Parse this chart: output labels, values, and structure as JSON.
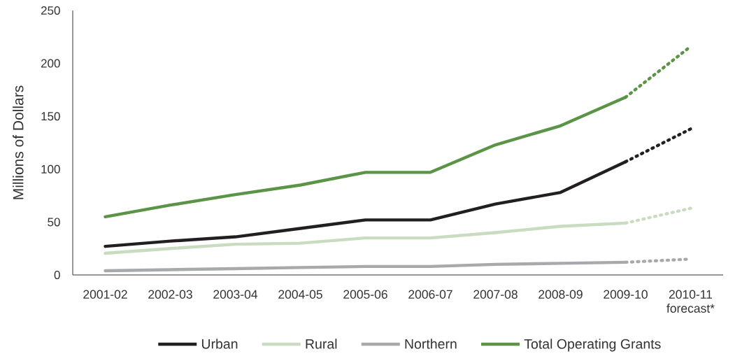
{
  "chart_data": {
    "type": "line",
    "ylabel": "Millions of Dollars",
    "categories": [
      "2001-02",
      "2002-03",
      "2003-04",
      "2004-05",
      "2005-06",
      "2006-07",
      "2007-08",
      "2008-09",
      "2009-10",
      "2010-11 forecast*"
    ],
    "ylim": [
      0,
      250
    ],
    "yticks": [
      0,
      50,
      100,
      150,
      200,
      250
    ],
    "legend": "bottom",
    "series": [
      {
        "name": "Urban",
        "color": "#231f20",
        "line_style": "solid",
        "values": [
          27,
          32,
          36,
          44,
          52,
          52,
          67,
          78,
          107,
          null
        ]
      },
      {
        "name": "Rural",
        "color": "#c9dcc0",
        "line_style": "solid",
        "values": [
          20.5,
          25,
          29,
          30,
          35,
          35,
          40,
          46,
          49,
          null
        ]
      },
      {
        "name": "Northern",
        "color": "#a7a9ac",
        "line_style": "solid",
        "values": [
          4,
          5,
          6,
          7,
          8,
          8,
          10,
          11,
          12,
          null
        ]
      },
      {
        "name": "Total Operating Grants",
        "color": "#5b9446",
        "line_style": "solid",
        "values": [
          55,
          66,
          76,
          85,
          97,
          97,
          123,
          141,
          168,
          null
        ]
      },
      {
        "color": "#231f20",
        "line_style": "dotted",
        "values": [
          null,
          null,
          null,
          null,
          null,
          null,
          null,
          null,
          107,
          138
        ]
      },
      {
        "color": "#c9dcc0",
        "line_style": "dotted",
        "values": [
          null,
          null,
          null,
          null,
          null,
          null,
          null,
          null,
          49,
          63
        ]
      },
      {
        "color": "#a7a9ac",
        "line_style": "dotted",
        "values": [
          null,
          null,
          null,
          null,
          null,
          null,
          null,
          null,
          12,
          15
        ]
      },
      {
        "color": "#5b9446",
        "line_style": "dotted",
        "values": [
          null,
          null,
          null,
          null,
          null,
          null,
          null,
          null,
          168,
          216
        ]
      }
    ]
  }
}
